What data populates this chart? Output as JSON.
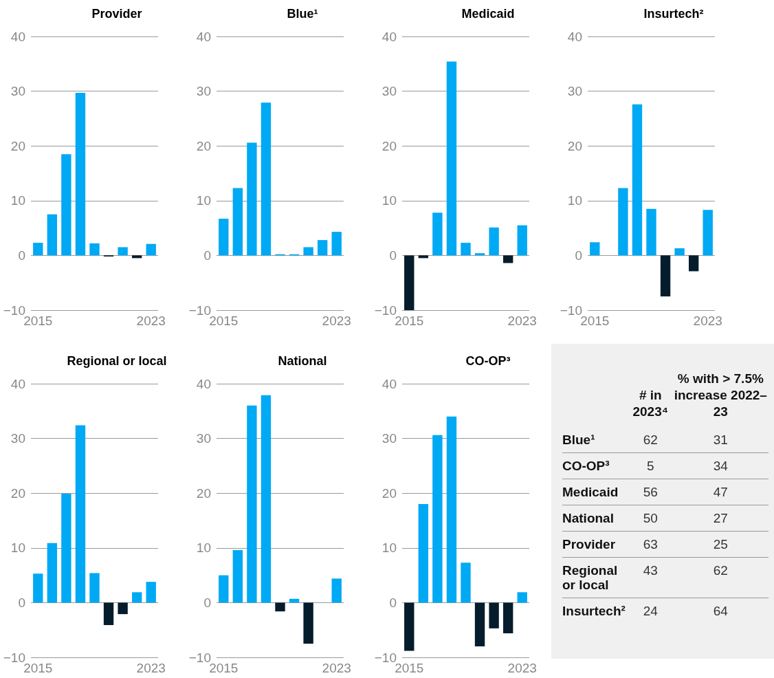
{
  "chart_data": [
    {
      "type": "bar",
      "title": "Provider",
      "categories": [
        "2015",
        null,
        null,
        null,
        null,
        null,
        null,
        null,
        "2023"
      ],
      "values": [
        2.3,
        7.5,
        18.5,
        29.7,
        2.2,
        -0.2,
        1.5,
        -0.5,
        2.1
      ],
      "colors": [
        "#00a9f4",
        "#00a9f4",
        "#00a9f4",
        "#00a9f4",
        "#00a9f4",
        "#051c2c",
        "#00a9f4",
        "#051c2c",
        "#00a9f4"
      ],
      "ylim": [
        -10,
        40
      ],
      "yticks": [
        -10,
        0,
        10,
        20,
        30,
        40
      ],
      "grid": "y"
    },
    {
      "type": "bar",
      "title": "Blue¹",
      "categories": [
        "2015",
        null,
        null,
        null,
        null,
        null,
        null,
        null,
        "2023"
      ],
      "values": [
        6.7,
        12.3,
        20.6,
        27.9,
        0.2,
        0.2,
        1.5,
        2.8,
        4.3
      ],
      "colors": [
        "#00a9f4",
        "#00a9f4",
        "#00a9f4",
        "#00a9f4",
        "#00a9f4",
        "#00a9f4",
        "#00a9f4",
        "#00a9f4",
        "#00a9f4"
      ],
      "ylim": [
        -10,
        40
      ],
      "yticks": [
        -10,
        0,
        10,
        20,
        30,
        40
      ],
      "grid": "y"
    },
    {
      "type": "bar",
      "title": "Medicaid",
      "categories": [
        "2015",
        null,
        null,
        null,
        null,
        null,
        null,
        null,
        "2023"
      ],
      "values": [
        -10,
        -0.5,
        7.8,
        35.4,
        2.3,
        0.4,
        5.1,
        -1.4,
        5.5
      ],
      "colors": [
        "#051c2c",
        "#051c2c",
        "#00a9f4",
        "#00a9f4",
        "#00a9f4",
        "#00a9f4",
        "#00a9f4",
        "#051c2c",
        "#00a9f4"
      ],
      "ylim": [
        -10,
        40
      ],
      "yticks": [
        -10,
        0,
        10,
        20,
        30,
        40
      ],
      "grid": "y"
    },
    {
      "type": "bar",
      "title": "Insurtech²",
      "categories": [
        "2015",
        null,
        null,
        null,
        null,
        null,
        null,
        null,
        "2023"
      ],
      "values": [
        2.4,
        0,
        12.3,
        27.6,
        8.5,
        -7.5,
        1.3,
        -2.9,
        8.3
      ],
      "colors": [
        "#00a9f4",
        "#00a9f4",
        "#00a9f4",
        "#00a9f4",
        "#00a9f4",
        "#051c2c",
        "#00a9f4",
        "#051c2c",
        "#00a9f4"
      ],
      "ylim": [
        -10,
        40
      ],
      "yticks": [
        -10,
        0,
        10,
        20,
        30,
        40
      ],
      "grid": "y"
    },
    {
      "type": "bar",
      "title": "Regional or local",
      "categories": [
        "2015",
        null,
        null,
        null,
        null,
        null,
        null,
        null,
        "2023"
      ],
      "values": [
        5.3,
        10.9,
        19.9,
        32.4,
        5.4,
        -4.1,
        -2.1,
        1.9,
        3.8
      ],
      "colors": [
        "#00a9f4",
        "#00a9f4",
        "#00a9f4",
        "#00a9f4",
        "#00a9f4",
        "#051c2c",
        "#051c2c",
        "#00a9f4",
        "#00a9f4"
      ],
      "ylim": [
        -10,
        40
      ],
      "yticks": [
        -10,
        0,
        10,
        20,
        30,
        40
      ],
      "grid": "y"
    },
    {
      "type": "bar",
      "title": "National",
      "categories": [
        "2015",
        null,
        null,
        null,
        null,
        null,
        null,
        null,
        "2023"
      ],
      "values": [
        5.0,
        9.6,
        36.0,
        37.9,
        -1.6,
        0.7,
        -7.5,
        0,
        4.4
      ],
      "colors": [
        "#00a9f4",
        "#00a9f4",
        "#00a9f4",
        "#00a9f4",
        "#051c2c",
        "#00a9f4",
        "#051c2c",
        "#00a9f4",
        "#00a9f4"
      ],
      "ylim": [
        -10,
        40
      ],
      "yticks": [
        -10,
        0,
        10,
        20,
        30,
        40
      ],
      "grid": "y"
    },
    {
      "type": "bar",
      "title": "CO-OP³",
      "categories": [
        "2015",
        null,
        null,
        null,
        null,
        null,
        null,
        null,
        "2023"
      ],
      "values": [
        -8.8,
        18.0,
        30.6,
        34.0,
        7.3,
        -8.0,
        -4.7,
        -5.6,
        1.9
      ],
      "colors": [
        "#051c2c",
        "#00a9f4",
        "#00a9f4",
        "#00a9f4",
        "#00a9f4",
        "#051c2c",
        "#051c2c",
        "#051c2c",
        "#00a9f4"
      ],
      "ylim": [
        -10,
        40
      ],
      "yticks": [
        -10,
        0,
        10,
        20,
        30,
        40
      ],
      "grid": "y"
    },
    {
      "type": "other",
      "categories": [
        "Blue¹",
        "CO-OP³",
        "Medicaid",
        "National",
        "Provider",
        "Regional or local",
        "Insurtech²"
      ],
      "series": [
        {
          "name": "# in 2023⁴",
          "values": [
            62,
            5,
            56,
            50,
            63,
            43,
            24
          ]
        },
        {
          "name": "% with > 7.5% increase 2022–23",
          "values": [
            31,
            34,
            47,
            27,
            25,
            62,
            64
          ]
        }
      ],
      "data_labels": true
    }
  ]
}
